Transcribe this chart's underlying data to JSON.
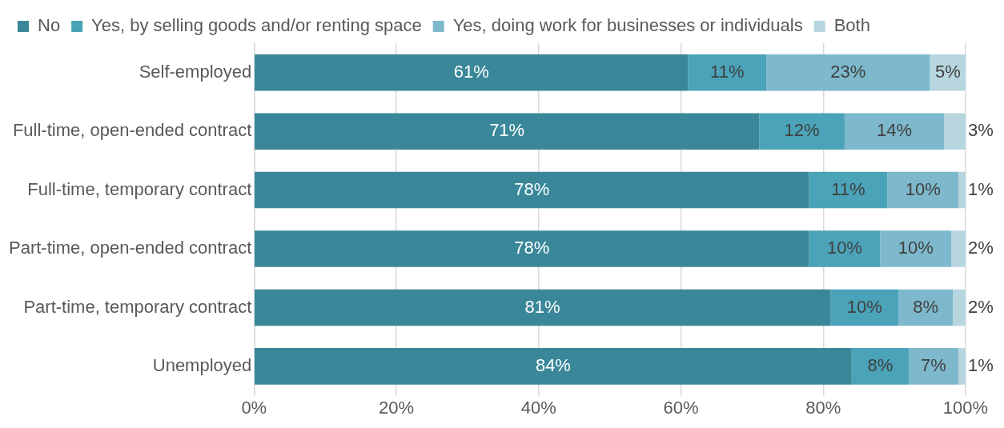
{
  "chart_data": {
    "type": "bar",
    "orientation": "horizontal",
    "stacked": true,
    "categories": [
      "Self-employed",
      "Full-time, open-ended contract",
      "Full-time, temporary contract",
      "Part-time, open-ended contract",
      "Part-time, temporary contract",
      "Unemployed"
    ],
    "series": [
      {
        "name": "No",
        "color": "#3a8799",
        "values": [
          61,
          71,
          78,
          78,
          81,
          84
        ],
        "value_labels": [
          "61%",
          "71%",
          "78%",
          "78%",
          "81%",
          "84%"
        ]
      },
      {
        "name": "Yes, by selling goods and/or renting space",
        "color": "#4aa3b8",
        "values": [
          11,
          12,
          11,
          10,
          9.6,
          8
        ],
        "value_labels": [
          "11%",
          "12%",
          "11%",
          "10%",
          "10%",
          "8%"
        ]
      },
      {
        "name": "Yes, doing work for businesses or individuals",
        "color": "#7db8cc",
        "values": [
          23,
          14,
          10,
          10,
          7.6,
          7
        ],
        "value_labels": [
          "23%",
          "14%",
          "10%",
          "10%",
          "8%",
          "7%"
        ]
      },
      {
        "name": "Both",
        "color": "#b8d6e0",
        "values": [
          5,
          3,
          1,
          2,
          1.8,
          1
        ],
        "value_labels": [
          "5%",
          "3%",
          "1%",
          "2%",
          "2%",
          "1%"
        ]
      }
    ],
    "xlim": [
      0,
      100
    ],
    "xticks": [
      {
        "value": 0,
        "label": "0%"
      },
      {
        "value": 20,
        "label": "20%"
      },
      {
        "value": 40,
        "label": "40%"
      },
      {
        "value": 60,
        "label": "60%"
      },
      {
        "value": 80,
        "label": "80%"
      },
      {
        "value": 100,
        "label": "100%"
      }
    ],
    "grid": "x",
    "legend": "top"
  }
}
